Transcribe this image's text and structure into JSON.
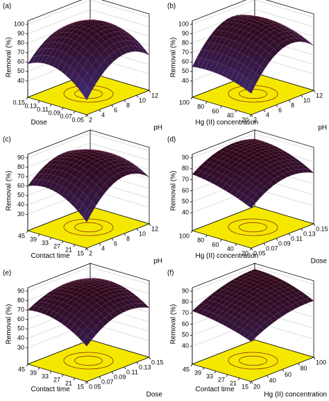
{
  "chart_data": [
    {
      "type": "surface",
      "title": "(a)",
      "zlabel": "Removal (%)",
      "xlabel": "Dose",
      "ylabel": "pH",
      "xlim": [
        0.05,
        0.15
      ],
      "xticks": [
        0.05,
        0.07,
        0.09,
        0.11,
        0.13,
        0.15
      ],
      "ylim": [
        2,
        12
      ],
      "yticks": [
        2,
        4,
        6,
        8,
        10,
        12
      ],
      "zlim": [
        30,
        100
      ],
      "zticks": [
        40,
        50,
        60,
        70,
        80,
        90,
        100
      ],
      "x": [
        0.05,
        0.1,
        0.15
      ],
      "y": [
        2,
        7,
        12
      ],
      "z": [
        [
          38,
          70,
          60
        ],
        [
          62,
          92,
          80
        ],
        [
          58,
          82,
          72
        ]
      ]
    },
    {
      "type": "surface",
      "title": "(b)",
      "zlabel": "Removal (%)",
      "xlabel": "Hg (II) concentration",
      "ylabel": "pH",
      "xlim": [
        20,
        100
      ],
      "xticks": [
        20,
        40,
        60,
        80,
        100
      ],
      "ylim": [
        2,
        12
      ],
      "yticks": [
        2,
        4,
        6,
        8,
        10,
        12
      ],
      "zlim": [
        30,
        100
      ],
      "zticks": [
        40,
        50,
        60,
        70,
        80,
        90,
        100
      ],
      "x": [
        20,
        60,
        100
      ],
      "y": [
        2,
        7,
        12
      ],
      "z": [
        [
          45,
          80,
          70
        ],
        [
          55,
          92,
          82
        ],
        [
          55,
          90,
          80
        ]
      ]
    },
    {
      "type": "surface",
      "title": "(c)",
      "zlabel": "Removal (%)",
      "xlabel": "Contact time",
      "ylabel": "pH",
      "xlim": [
        15,
        45
      ],
      "xticks": [
        15,
        21,
        27,
        33,
        39,
        45
      ],
      "ylim": [
        2,
        12
      ],
      "yticks": [
        2,
        4,
        6,
        8,
        10,
        12
      ],
      "zlim": [
        20,
        90
      ],
      "zticks": [
        30,
        40,
        50,
        60,
        70,
        80,
        90
      ],
      "x": [
        15,
        30,
        45
      ],
      "y": [
        2,
        7,
        12
      ],
      "z": [
        [
          40,
          72,
          62
        ],
        [
          62,
          85,
          75
        ],
        [
          60,
          80,
          70
        ]
      ]
    },
    {
      "type": "surface",
      "title": "(d)",
      "zlabel": "Removal (%)",
      "xlabel": "Hg (II) concentration",
      "ylabel": "Dose",
      "xlim": [
        20,
        100
      ],
      "xticks": [
        20,
        40,
        60,
        80,
        100
      ],
      "ylim": [
        0.05,
        0.15
      ],
      "yticks": [
        0.05,
        0.07,
        0.09,
        0.11,
        0.13,
        0.15
      ],
      "zlim": [
        30,
        90
      ],
      "zticks": [
        40,
        50,
        60,
        70,
        80,
        90
      ],
      "x": [
        20,
        60,
        100
      ],
      "y": [
        0.05,
        0.1,
        0.15
      ],
      "z": [
        [
          60,
          75,
          70
        ],
        [
          70,
          85,
          82
        ],
        [
          75,
          88,
          85
        ]
      ]
    },
    {
      "type": "surface",
      "title": "(e)",
      "zlabel": "Removal (%)",
      "xlabel": "Contact time",
      "ylabel": "Dose",
      "xlim": [
        15,
        45
      ],
      "xticks": [
        15,
        21,
        27,
        33,
        39,
        45
      ],
      "ylim": [
        0.05,
        0.15
      ],
      "yticks": [
        0.05,
        0.07,
        0.09,
        0.11,
        0.13,
        0.15
      ],
      "zlim": [
        20,
        90
      ],
      "zticks": [
        30,
        40,
        50,
        60,
        70,
        80,
        90
      ],
      "x": [
        15,
        30,
        45
      ],
      "y": [
        0.05,
        0.1,
        0.15
      ],
      "z": [
        [
          50,
          70,
          65
        ],
        [
          68,
          85,
          80
        ],
        [
          70,
          82,
          78
        ]
      ]
    },
    {
      "type": "surface",
      "title": "(f)",
      "zlabel": "Removal (%)",
      "xlabel": "Contact time",
      "ylabel": "Hg (II) concentration",
      "xlim": [
        15,
        45
      ],
      "xticks": [
        15,
        21,
        27,
        33,
        39,
        45
      ],
      "ylim": [
        20,
        100
      ],
      "yticks": [
        20,
        40,
        60,
        80,
        100
      ],
      "zlim": [
        30,
        90
      ],
      "zticks": [
        40,
        50,
        60,
        70,
        80,
        90
      ],
      "x": [
        15,
        30,
        45
      ],
      "y": [
        20,
        60,
        100
      ],
      "z": [
        [
          60,
          72,
          75
        ],
        [
          68,
          82,
          85
        ],
        [
          72,
          84,
          88
        ]
      ]
    }
  ]
}
